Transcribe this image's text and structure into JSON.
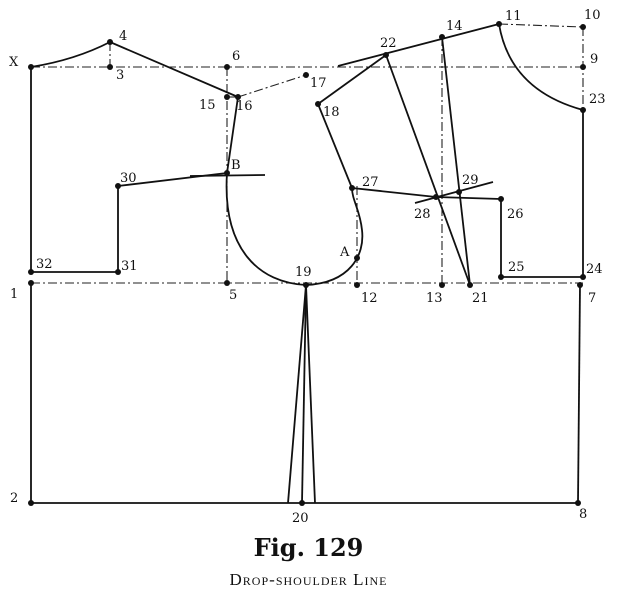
{
  "figure": {
    "title": "Fig. 129",
    "subtitle": "Drop-shoulder Line"
  },
  "points": {
    "X": "X",
    "p1": "1",
    "p2": "2",
    "p3": "3",
    "p4": "4",
    "p5": "5",
    "p6": "6",
    "p7": "7",
    "p8": "8",
    "p9": "9",
    "p10": "10",
    "p11": "11",
    "p12": "12",
    "p13": "13",
    "p14": "14",
    "p15": "15",
    "p16": "16",
    "p17": "17",
    "p18": "18",
    "p19": "19",
    "p20": "20",
    "p21": "21",
    "p22": "22",
    "p23": "23",
    "p24": "24",
    "p25": "25",
    "p26": "26",
    "p27": "27",
    "p28": "28",
    "p29": "29",
    "p30": "30",
    "p31": "31",
    "p32": "32",
    "A": "A",
    "B": "B"
  }
}
